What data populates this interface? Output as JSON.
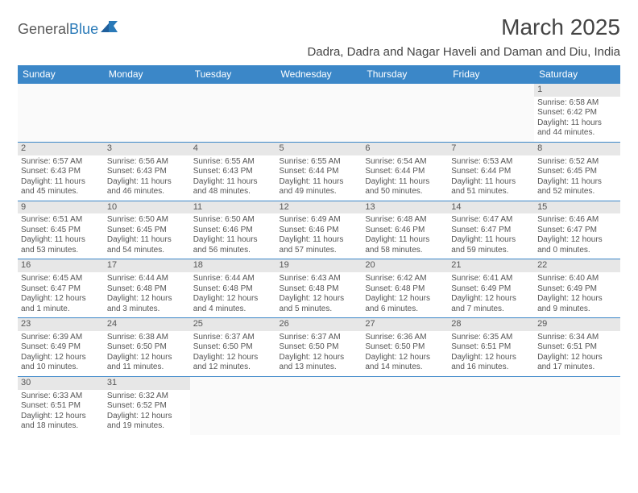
{
  "logo": {
    "part1": "General",
    "part2": "Blue"
  },
  "title": "March 2025",
  "location": "Dadra, Dadra and Nagar Haveli and Daman and Diu, India",
  "colors": {
    "header_bg": "#3b87c8",
    "header_fg": "#ffffff",
    "daynum_bg": "#e7e7e7",
    "border": "#3b87c8",
    "text": "#555555",
    "logo_gray": "#5a5a5a",
    "logo_blue": "#2a7ab8"
  },
  "weekdays": [
    "Sunday",
    "Monday",
    "Tuesday",
    "Wednesday",
    "Thursday",
    "Friday",
    "Saturday"
  ],
  "weeks": [
    [
      null,
      null,
      null,
      null,
      null,
      null,
      {
        "n": "1",
        "sr": "Sunrise: 6:58 AM",
        "ss": "Sunset: 6:42 PM",
        "dl": "Daylight: 11 hours and 44 minutes."
      }
    ],
    [
      {
        "n": "2",
        "sr": "Sunrise: 6:57 AM",
        "ss": "Sunset: 6:43 PM",
        "dl": "Daylight: 11 hours and 45 minutes."
      },
      {
        "n": "3",
        "sr": "Sunrise: 6:56 AM",
        "ss": "Sunset: 6:43 PM",
        "dl": "Daylight: 11 hours and 46 minutes."
      },
      {
        "n": "4",
        "sr": "Sunrise: 6:55 AM",
        "ss": "Sunset: 6:43 PM",
        "dl": "Daylight: 11 hours and 48 minutes."
      },
      {
        "n": "5",
        "sr": "Sunrise: 6:55 AM",
        "ss": "Sunset: 6:44 PM",
        "dl": "Daylight: 11 hours and 49 minutes."
      },
      {
        "n": "6",
        "sr": "Sunrise: 6:54 AM",
        "ss": "Sunset: 6:44 PM",
        "dl": "Daylight: 11 hours and 50 minutes."
      },
      {
        "n": "7",
        "sr": "Sunrise: 6:53 AM",
        "ss": "Sunset: 6:44 PM",
        "dl": "Daylight: 11 hours and 51 minutes."
      },
      {
        "n": "8",
        "sr": "Sunrise: 6:52 AM",
        "ss": "Sunset: 6:45 PM",
        "dl": "Daylight: 11 hours and 52 minutes."
      }
    ],
    [
      {
        "n": "9",
        "sr": "Sunrise: 6:51 AM",
        "ss": "Sunset: 6:45 PM",
        "dl": "Daylight: 11 hours and 53 minutes."
      },
      {
        "n": "10",
        "sr": "Sunrise: 6:50 AM",
        "ss": "Sunset: 6:45 PM",
        "dl": "Daylight: 11 hours and 54 minutes."
      },
      {
        "n": "11",
        "sr": "Sunrise: 6:50 AM",
        "ss": "Sunset: 6:46 PM",
        "dl": "Daylight: 11 hours and 56 minutes."
      },
      {
        "n": "12",
        "sr": "Sunrise: 6:49 AM",
        "ss": "Sunset: 6:46 PM",
        "dl": "Daylight: 11 hours and 57 minutes."
      },
      {
        "n": "13",
        "sr": "Sunrise: 6:48 AM",
        "ss": "Sunset: 6:46 PM",
        "dl": "Daylight: 11 hours and 58 minutes."
      },
      {
        "n": "14",
        "sr": "Sunrise: 6:47 AM",
        "ss": "Sunset: 6:47 PM",
        "dl": "Daylight: 11 hours and 59 minutes."
      },
      {
        "n": "15",
        "sr": "Sunrise: 6:46 AM",
        "ss": "Sunset: 6:47 PM",
        "dl": "Daylight: 12 hours and 0 minutes."
      }
    ],
    [
      {
        "n": "16",
        "sr": "Sunrise: 6:45 AM",
        "ss": "Sunset: 6:47 PM",
        "dl": "Daylight: 12 hours and 1 minute."
      },
      {
        "n": "17",
        "sr": "Sunrise: 6:44 AM",
        "ss": "Sunset: 6:48 PM",
        "dl": "Daylight: 12 hours and 3 minutes."
      },
      {
        "n": "18",
        "sr": "Sunrise: 6:44 AM",
        "ss": "Sunset: 6:48 PM",
        "dl": "Daylight: 12 hours and 4 minutes."
      },
      {
        "n": "19",
        "sr": "Sunrise: 6:43 AM",
        "ss": "Sunset: 6:48 PM",
        "dl": "Daylight: 12 hours and 5 minutes."
      },
      {
        "n": "20",
        "sr": "Sunrise: 6:42 AM",
        "ss": "Sunset: 6:48 PM",
        "dl": "Daylight: 12 hours and 6 minutes."
      },
      {
        "n": "21",
        "sr": "Sunrise: 6:41 AM",
        "ss": "Sunset: 6:49 PM",
        "dl": "Daylight: 12 hours and 7 minutes."
      },
      {
        "n": "22",
        "sr": "Sunrise: 6:40 AM",
        "ss": "Sunset: 6:49 PM",
        "dl": "Daylight: 12 hours and 9 minutes."
      }
    ],
    [
      {
        "n": "23",
        "sr": "Sunrise: 6:39 AM",
        "ss": "Sunset: 6:49 PM",
        "dl": "Daylight: 12 hours and 10 minutes."
      },
      {
        "n": "24",
        "sr": "Sunrise: 6:38 AM",
        "ss": "Sunset: 6:50 PM",
        "dl": "Daylight: 12 hours and 11 minutes."
      },
      {
        "n": "25",
        "sr": "Sunrise: 6:37 AM",
        "ss": "Sunset: 6:50 PM",
        "dl": "Daylight: 12 hours and 12 minutes."
      },
      {
        "n": "26",
        "sr": "Sunrise: 6:37 AM",
        "ss": "Sunset: 6:50 PM",
        "dl": "Daylight: 12 hours and 13 minutes."
      },
      {
        "n": "27",
        "sr": "Sunrise: 6:36 AM",
        "ss": "Sunset: 6:50 PM",
        "dl": "Daylight: 12 hours and 14 minutes."
      },
      {
        "n": "28",
        "sr": "Sunrise: 6:35 AM",
        "ss": "Sunset: 6:51 PM",
        "dl": "Daylight: 12 hours and 16 minutes."
      },
      {
        "n": "29",
        "sr": "Sunrise: 6:34 AM",
        "ss": "Sunset: 6:51 PM",
        "dl": "Daylight: 12 hours and 17 minutes."
      }
    ],
    [
      {
        "n": "30",
        "sr": "Sunrise: 6:33 AM",
        "ss": "Sunset: 6:51 PM",
        "dl": "Daylight: 12 hours and 18 minutes."
      },
      {
        "n": "31",
        "sr": "Sunrise: 6:32 AM",
        "ss": "Sunset: 6:52 PM",
        "dl": "Daylight: 12 hours and 19 minutes."
      },
      null,
      null,
      null,
      null,
      null
    ]
  ]
}
